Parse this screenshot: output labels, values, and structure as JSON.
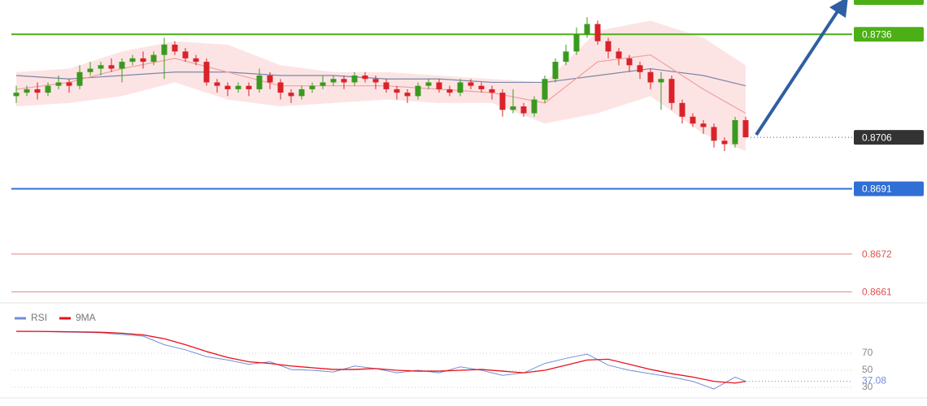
{
  "chart_data": [
    {
      "type": "candlestick",
      "up_color": "#3a9a1f",
      "down_color": "#d9222a",
      "ylim": [
        0.8658,
        0.8746
      ],
      "open": [
        0.8718,
        0.8719,
        0.872,
        0.8719,
        0.8721,
        0.8722,
        0.8721,
        0.8725,
        0.8726,
        0.8727,
        0.8726,
        0.8728,
        0.8729,
        0.8728,
        0.873,
        0.8733,
        0.8731,
        0.8729,
        0.8728,
        0.8722,
        0.8721,
        0.872,
        0.8721,
        0.872,
        0.8724,
        0.8722,
        0.8719,
        0.8718,
        0.872,
        0.8721,
        0.8722,
        0.8723,
        0.8722,
        0.8724,
        0.8723,
        0.8722,
        0.872,
        0.8719,
        0.8718,
        0.8721,
        0.8722,
        0.872,
        0.8719,
        0.8722,
        0.8721,
        0.872,
        0.8719,
        0.8714,
        0.8715,
        0.8713,
        0.8717,
        0.8723,
        0.8728,
        0.8731,
        0.8736,
        0.8739,
        0.8734,
        0.8731,
        0.8729,
        0.8727,
        0.8725,
        0.8722,
        0.8723,
        0.8716,
        0.8712,
        0.871,
        0.8709,
        0.8705,
        0.8704,
        0.8711
      ],
      "high": [
        0.8721,
        0.8721,
        0.8722,
        0.8722,
        0.8724,
        0.8723,
        0.8727,
        0.8728,
        0.8728,
        0.8729,
        0.8729,
        0.873,
        0.8731,
        0.8731,
        0.8735,
        0.8734,
        0.8732,
        0.873,
        0.8729,
        0.8723,
        0.8722,
        0.8722,
        0.8722,
        0.8726,
        0.8725,
        0.8723,
        0.872,
        0.8721,
        0.8722,
        0.8724,
        0.8724,
        0.8724,
        0.8725,
        0.8725,
        0.8724,
        0.8723,
        0.8721,
        0.872,
        0.8722,
        0.8723,
        0.8723,
        0.8721,
        0.8723,
        0.8723,
        0.8722,
        0.8721,
        0.872,
        0.872,
        0.8716,
        0.8718,
        0.8724,
        0.8729,
        0.8733,
        0.8738,
        0.8741,
        0.874,
        0.8735,
        0.8732,
        0.873,
        0.8728,
        0.8726,
        0.8725,
        0.8724,
        0.8717,
        0.8713,
        0.8711,
        0.871,
        0.8706,
        0.8712,
        0.8712
      ],
      "low": [
        0.8716,
        0.8718,
        0.8717,
        0.8718,
        0.872,
        0.8719,
        0.872,
        0.8724,
        0.8724,
        0.8725,
        0.8722,
        0.8727,
        0.8726,
        0.8727,
        0.8723,
        0.873,
        0.8728,
        0.8727,
        0.8721,
        0.8719,
        0.8718,
        0.8719,
        0.8718,
        0.8719,
        0.872,
        0.8717,
        0.8716,
        0.8717,
        0.8719,
        0.872,
        0.8721,
        0.872,
        0.8721,
        0.8722,
        0.872,
        0.8719,
        0.8717,
        0.8716,
        0.8717,
        0.872,
        0.8719,
        0.8718,
        0.8718,
        0.872,
        0.8719,
        0.8717,
        0.8712,
        0.8713,
        0.8712,
        0.8712,
        0.8716,
        0.8722,
        0.8727,
        0.873,
        0.8735,
        0.8733,
        0.8729,
        0.8727,
        0.8725,
        0.8723,
        0.872,
        0.8714,
        0.8714,
        0.871,
        0.8709,
        0.8707,
        0.8703,
        0.8702,
        0.8703,
        0.8706
      ],
      "close": [
        0.8719,
        0.872,
        0.8719,
        0.8721,
        0.8722,
        0.8721,
        0.8725,
        0.8726,
        0.8727,
        0.8726,
        0.8728,
        0.8729,
        0.8728,
        0.873,
        0.8733,
        0.8731,
        0.8729,
        0.8728,
        0.8722,
        0.8721,
        0.872,
        0.8721,
        0.872,
        0.8724,
        0.8722,
        0.8719,
        0.8718,
        0.872,
        0.8721,
        0.8722,
        0.8723,
        0.8722,
        0.8724,
        0.8723,
        0.8722,
        0.872,
        0.8719,
        0.8718,
        0.8721,
        0.8722,
        0.872,
        0.8719,
        0.8722,
        0.8721,
        0.872,
        0.8719,
        0.8714,
        0.8715,
        0.8713,
        0.8717,
        0.8723,
        0.8728,
        0.8731,
        0.8736,
        0.8739,
        0.8734,
        0.8731,
        0.8729,
        0.8727,
        0.8725,
        0.8722,
        0.8723,
        0.8716,
        0.8712,
        0.871,
        0.8709,
        0.8705,
        0.8704,
        0.8711,
        0.8706
      ],
      "overlay_x": [
        0,
        5,
        10,
        15,
        20,
        25,
        30,
        35,
        40,
        45,
        50,
        55,
        60,
        65,
        69
      ],
      "ma_slow": [
        0.8724,
        0.8723,
        0.8724,
        0.8725,
        0.8725,
        0.8724,
        0.8724,
        0.8723,
        0.8723,
        0.8722,
        0.8722,
        0.8724,
        0.8726,
        0.8724,
        0.8721
      ],
      "ma_slow_color": "#7b86a8",
      "ma_fast": [
        0.872,
        0.8722,
        0.8726,
        0.8729,
        0.8725,
        0.8721,
        0.8721,
        0.8721,
        0.872,
        0.8719,
        0.8716,
        0.8728,
        0.873,
        0.872,
        0.8713
      ],
      "ma_fast_color": "#f0a0a0",
      "bb_upper": [
        0.8725,
        0.8726,
        0.8731,
        0.8734,
        0.8733,
        0.8727,
        0.8725,
        0.8725,
        0.8724,
        0.8723,
        0.8722,
        0.8737,
        0.874,
        0.8735,
        0.8727
      ],
      "bb_lower": [
        0.8715,
        0.8716,
        0.8718,
        0.8722,
        0.8717,
        0.8715,
        0.8716,
        0.8717,
        0.8716,
        0.8716,
        0.871,
        0.8713,
        0.8718,
        0.8707,
        0.8702
      ],
      "band_color": "#fde4e4",
      "levels": [
        {
          "value": 0.8736,
          "color": "#4caf16",
          "tag": true
        },
        {
          "value": 0.8691,
          "color": "#2f6fd6",
          "tag": true
        },
        {
          "value": 0.8672,
          "color": "#e05050",
          "tag": false
        },
        {
          "value": 0.8661,
          "color": "#e05050",
          "tag": false
        }
      ],
      "last_color": "#333333"
    },
    {
      "type": "line",
      "ylim": [
        17.6,
        116.7
      ],
      "yticks": [
        70,
        50,
        30
      ],
      "x": [
        0,
        2,
        4,
        6,
        8,
        10,
        12,
        14,
        16,
        18,
        20,
        22,
        24,
        26,
        28,
        30,
        32,
        34,
        36,
        38,
        40,
        42,
        44,
        46,
        48,
        50,
        52,
        54,
        56,
        58,
        60,
        62,
        64,
        66,
        68,
        69
      ],
      "series": [
        {
          "name": "RSI",
          "color": "#6f8fd8",
          "values": [
            95.7,
            95.5,
            95,
            94.5,
            94,
            92,
            90,
            80,
            74,
            66,
            62,
            57,
            60,
            51,
            50,
            48,
            55,
            52,
            47,
            50,
            47,
            54,
            50,
            44,
            47,
            58,
            64,
            69,
            56,
            50,
            46,
            42,
            37,
            28,
            42,
            37.08
          ]
        },
        {
          "name": "9MA",
          "color": "#e8101a",
          "values": [
            95.7,
            95.6,
            95.3,
            95,
            94.6,
            93.5,
            91.5,
            87,
            80,
            72,
            65,
            60,
            58,
            55,
            53,
            51,
            51,
            52,
            50,
            49,
            49,
            50,
            51,
            49,
            47,
            50,
            56,
            62,
            63,
            57,
            51,
            46,
            42,
            37,
            35,
            37
          ]
        }
      ]
    }
  ]
}
